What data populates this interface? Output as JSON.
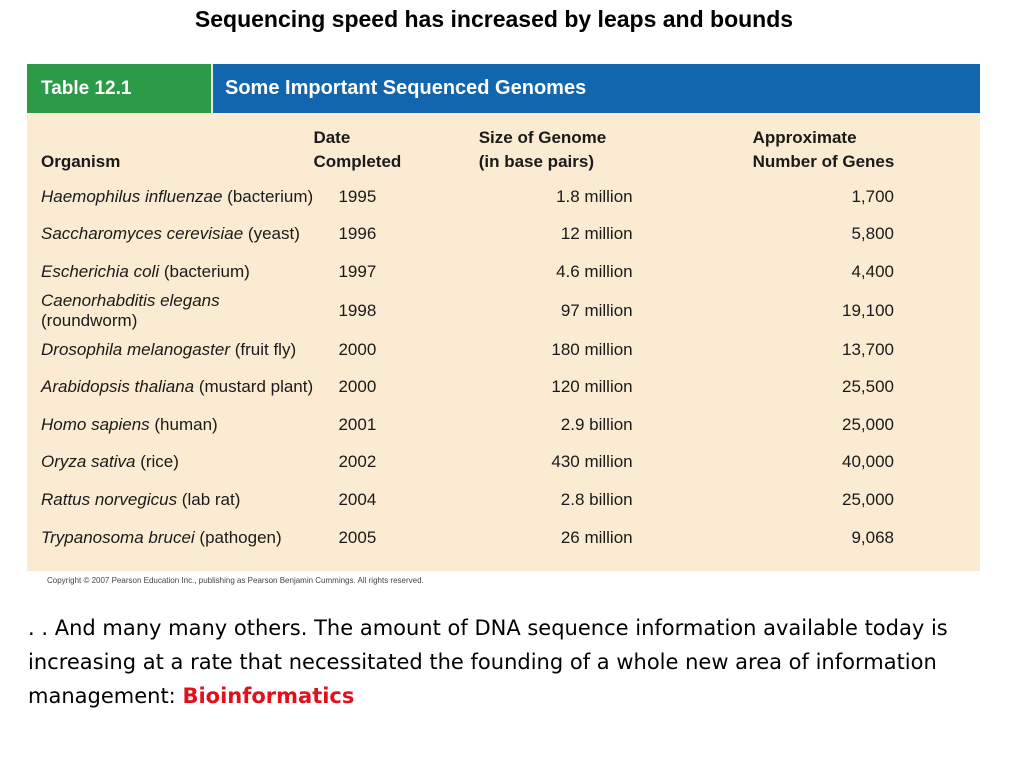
{
  "slide": {
    "title": "Sequencing speed has increased by leaps and bounds"
  },
  "figure": {
    "label": "Table 12.1",
    "title": "Some Important Sequenced Genomes",
    "colors": {
      "label_bg": "#2c9a47",
      "title_bg": "#1266ae",
      "table_bg": "#fbebd2"
    },
    "headers": {
      "organism": "Organism",
      "date_line1": "Date",
      "date_line2": "Completed",
      "size_line1": "Size of Genome",
      "size_line2": "(in base pairs)",
      "genes_line1": "Approximate",
      "genes_line2": "Number of Genes"
    },
    "rows": [
      {
        "species": "Haemophilus influenzae",
        "common": " (bacterium)",
        "date": "1995",
        "size": "1.8 million",
        "genes": "1,700"
      },
      {
        "species": "Saccharomyces cerevisiae",
        "common": " (yeast)",
        "date": "1996",
        "size": "12 million",
        "genes": "5,800"
      },
      {
        "species": "Escherichia coli",
        "common": " (bacterium)",
        "date": "1997",
        "size": "4.6 million",
        "genes": "4,400"
      },
      {
        "species": "Caenorhabditis elegans",
        "common": " (roundworm)",
        "date": "1998",
        "size": "97 million",
        "genes": "19,100"
      },
      {
        "species": "Drosophila melanogaster",
        "common": " (fruit fly)",
        "date": "2000",
        "size": "180 million",
        "genes": "13,700"
      },
      {
        "species": "Arabidopsis thaliana",
        "common": " (mustard plant)",
        "date": "2000",
        "size": "120 million",
        "genes": "25,500"
      },
      {
        "species": "Homo sapiens",
        "common": " (human)",
        "date": "2001",
        "size": "2.9 billion",
        "genes": "25,000"
      },
      {
        "species": "Oryza sativa",
        "common": " (rice)",
        "date": "2002",
        "size": "430 million",
        "genes": "40,000"
      },
      {
        "species": "Rattus norvegicus",
        "common": " (lab rat)",
        "date": "2004",
        "size": "2.8 billion",
        "genes": "25,000"
      },
      {
        "species": "Trypanosoma brucei",
        "common": " (pathogen)",
        "date": "2005",
        "size": "26 million",
        "genes": "9,068"
      }
    ],
    "copyright": "Copyright © 2007 Pearson Education Inc., publishing as Pearson Benjamin Cummings. All rights reserved."
  },
  "body": {
    "text": ". . And many many others.  The amount of DNA sequence information available today is increasing at a rate that necessitated the founding of a whole new area of information management: ",
    "highlight": "Bioinformatics",
    "highlight_color": "#e3101b"
  }
}
